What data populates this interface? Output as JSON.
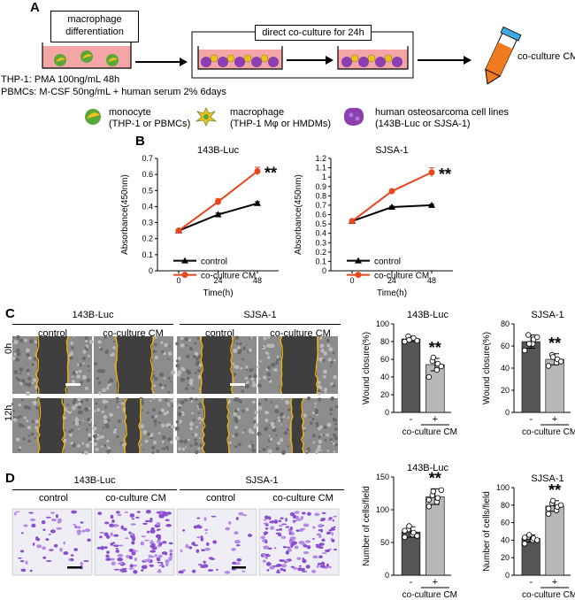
{
  "panel_labels": {
    "a": "A",
    "b": "B",
    "c": "C",
    "d": "D"
  },
  "panel_a": {
    "differentiation_label": "macrophage\ndifferentiation",
    "coculture_label": "direct co-culture for 24h",
    "cm_label": "co-culture CM",
    "thp1_line": "THP-1: PMA 100ng/mL 48h",
    "pbmc_line": "PBMCs: M-CSF 50ng/mL + human serum 2% 6days",
    "legend": {
      "monocyte_title": "monocyte",
      "monocyte_sub": "(THP-1 or PBMCs)",
      "macrophage_title": "macrophage",
      "macrophage_sub": "(THP-1 Mφ or HMDMs)",
      "osteo_title": "human osteosarcoma cell lines",
      "osteo_sub": "(143B-Luc or SJSA-1)"
    },
    "colors": {
      "medium": "#f4a6a6",
      "monocyte_green": "#5aa63a",
      "monocyte_yellow": "#f2c01e",
      "osteosarcoma": "#8b3fb0",
      "cm_orange": "#f07a1e",
      "tube_cap": "#3fa9e0"
    }
  },
  "panel_b": {
    "charts": [
      {
        "title": "143B-Luc",
        "ylabel": "Absorbance(450nm)",
        "xlabel": "Time(h)",
        "yticks": [
          "0",
          "0.1",
          "0.2",
          "0.3",
          "0.4",
          "0.5",
          "0.6",
          "0.7"
        ],
        "xticks": [
          "0",
          "24",
          "48"
        ],
        "sig": "**",
        "legend": [
          "control",
          "co-culture CM"
        ]
      },
      {
        "title": "SJSA-1",
        "ylabel": "Absorbance(450nm)",
        "xlabel": "Time(h)",
        "yticks": [
          "0",
          "0.1",
          "0.2",
          "0.3",
          "0.4",
          "0.5",
          "0.6",
          "0.7",
          "0.8",
          "0.9",
          "1",
          "1.1",
          "1.2"
        ],
        "xticks": [
          "0",
          "24",
          "48"
        ],
        "sig": "**",
        "legend": [
          "control",
          "co-culture CM"
        ]
      }
    ]
  },
  "panel_c": {
    "groups": [
      "143B-Luc",
      "SJSA-1"
    ],
    "conditions": [
      "control",
      "co-culture CM",
      "control",
      "co-culture CM"
    ],
    "rows": [
      "0h",
      "12h"
    ],
    "charts": [
      {
        "title": "143B-Luc",
        "ylabel": "Wound closure(%)",
        "yticks": [
          "0",
          "20",
          "40",
          "60",
          "80",
          "100"
        ],
        "xticks": [
          "-",
          "+"
        ],
        "xlabel": "co-culture CM",
        "sig": "**"
      },
      {
        "title": "SJSA-1",
        "ylabel": "Wound closure(%)",
        "yticks": [
          "0",
          "20",
          "40",
          "60",
          "80"
        ],
        "xticks": [
          "-",
          "+"
        ],
        "xlabel": "co-culture CM",
        "sig": "**"
      }
    ]
  },
  "panel_d": {
    "groups": [
      "143B-Luc",
      "SJSA-1"
    ],
    "conditions": [
      "control",
      "co-culture CM",
      "control",
      "co-culture CM"
    ],
    "charts": [
      {
        "title": "143B-Luc",
        "ylabel": "Number of cells/field",
        "yticks": [
          "0",
          "50",
          "100",
          "150"
        ],
        "xticks": [
          "-",
          "+"
        ],
        "xlabel": "co-culture CM",
        "sig": "**"
      },
      {
        "title": "SJSA-1",
        "ylabel": "Number of cells/field",
        "yticks": [
          "0",
          "20",
          "40",
          "60",
          "80",
          "100"
        ],
        "xticks": [
          "-",
          "+"
        ],
        "xlabel": "co-culture CM",
        "sig": "**"
      }
    ]
  },
  "chart_data": [
    {
      "type": "line",
      "title": "143B-Luc",
      "xlabel": "Time(h)",
      "ylabel": "Absorbance(450nm)",
      "x": [
        0,
        24,
        48
      ],
      "ylim": [
        0,
        0.7
      ],
      "series": [
        {
          "name": "control",
          "values": [
            0.25,
            0.35,
            0.42
          ],
          "errors": [
            0.005,
            0.01,
            0.01
          ],
          "color": "#000000"
        },
        {
          "name": "co-culture CM",
          "values": [
            0.25,
            0.43,
            0.62
          ],
          "errors": [
            0.005,
            0.02,
            0.025
          ],
          "color": "#e8471e"
        }
      ],
      "annotations": [
        "**"
      ]
    },
    {
      "type": "line",
      "title": "SJSA-1",
      "xlabel": "Time(h)",
      "ylabel": "Absorbance(450nm)",
      "x": [
        0,
        24,
        48
      ],
      "ylim": [
        0,
        1.2
      ],
      "series": [
        {
          "name": "control",
          "values": [
            0.53,
            0.68,
            0.7
          ],
          "errors": [
            0.01,
            0.01,
            0.01
          ],
          "color": "#000000"
        },
        {
          "name": "co-culture CM",
          "values": [
            0.53,
            0.85,
            1.05
          ],
          "errors": [
            0.01,
            0.015,
            0.05
          ],
          "color": "#e8471e"
        }
      ],
      "annotations": [
        "**"
      ]
    },
    {
      "type": "bar",
      "title": "143B-Luc",
      "ylabel": "Wound closure(%)",
      "xlabel": "co-culture CM",
      "categories": [
        "-",
        "+"
      ],
      "values": [
        83,
        54
      ],
      "errors": [
        3,
        7
      ],
      "ylim": [
        0,
        100
      ],
      "points": [
        [
          80,
          83,
          84,
          86,
          82,
          81
        ],
        [
          40,
          48,
          55,
          58,
          62,
          52
        ]
      ],
      "colors": [
        "#555555",
        "#b8b8b8"
      ],
      "annotations": [
        "**"
      ]
    },
    {
      "type": "bar",
      "title": "SJSA-1",
      "ylabel": "Wound closure(%)",
      "xlabel": "co-culture CM",
      "categories": [
        "-",
        "+"
      ],
      "values": [
        64,
        48
      ],
      "errors": [
        6,
        5
      ],
      "ylim": [
        0,
        80
      ],
      "points": [
        [
          56,
          62,
          66,
          70,
          62,
          68
        ],
        [
          42,
          45,
          48,
          52,
          50,
          46
        ]
      ],
      "colors": [
        "#555555",
        "#b8b8b8"
      ],
      "annotations": [
        "**"
      ]
    },
    {
      "type": "bar",
      "title": "143B-Luc",
      "ylabel": "Number of cells/field",
      "xlabel": "co-culture CM",
      "categories": [
        "-",
        "+"
      ],
      "values": [
        66,
        120
      ],
      "errors": [
        8,
        12
      ],
      "ylim": [
        0,
        150
      ],
      "points": [
        [
          58,
          62,
          65,
          70,
          75,
          60,
          68
        ],
        [
          105,
          112,
          118,
          122,
          128,
          130,
          115
        ]
      ],
      "colors": [
        "#555555",
        "#b8b8b8"
      ],
      "annotations": [
        "**"
      ]
    },
    {
      "type": "bar",
      "title": "SJSA-1",
      "ylabel": "Number of cells/field",
      "xlabel": "co-culture CM",
      "categories": [
        "-",
        "+"
      ],
      "values": [
        42,
        79
      ],
      "errors": [
        4,
        6
      ],
      "ylim": [
        0,
        100
      ],
      "points": [
        [
          36,
          40,
          42,
          44,
          46,
          40,
          43
        ],
        [
          70,
          74,
          78,
          82,
          85,
          80,
          76
        ]
      ],
      "colors": [
        "#555555",
        "#b8b8b8"
      ],
      "annotations": [
        "**"
      ]
    }
  ]
}
